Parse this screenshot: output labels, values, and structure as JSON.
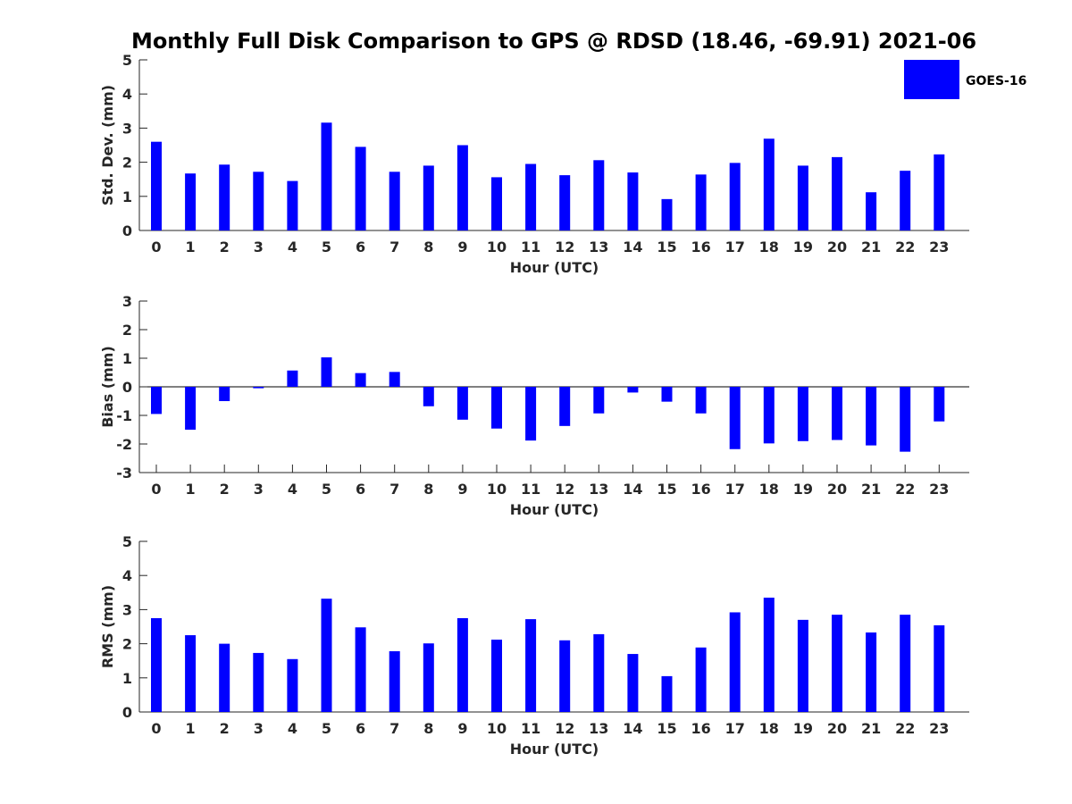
{
  "chart_data": {
    "type": "bar",
    "title": "Monthly Full Disk Comparison to GPS @ RDSD (18.46, -69.91) 2021-06",
    "legend": {
      "label": "GOES-16",
      "placement": "top-right",
      "color": "#0000ff"
    },
    "bar_color": "#0000ff",
    "grid": false,
    "categories": [
      "0",
      "1",
      "2",
      "3",
      "4",
      "5",
      "6",
      "7",
      "8",
      "9",
      "10",
      "11",
      "12",
      "13",
      "14",
      "15",
      "16",
      "17",
      "18",
      "19",
      "20",
      "21",
      "22",
      "23"
    ],
    "panels": [
      {
        "type": "bar",
        "xlabel": "Hour (UTC)",
        "ylabel": "Std. Dev. (mm)",
        "ylim": [
          0,
          5
        ],
        "yticks": [
          0,
          1,
          2,
          3,
          4,
          5
        ],
        "series": [
          {
            "name": "GOES-16",
            "values": [
              2.6,
              1.67,
              1.93,
              1.72,
              1.45,
              3.16,
              2.45,
              1.72,
              1.9,
              2.5,
              1.56,
              1.95,
              1.62,
              2.06,
              1.7,
              0.92,
              1.64,
              1.98,
              2.69,
              1.9,
              2.15,
              1.12,
              1.75,
              2.23
            ]
          }
        ]
      },
      {
        "type": "bar",
        "xlabel": "Hour (UTC)",
        "ylabel": "Bias (mm)",
        "ylim": [
          -3,
          3
        ],
        "yticks": [
          -3,
          -2,
          -1,
          0,
          1,
          2,
          3
        ],
        "series": [
          {
            "name": "GOES-16",
            "values": [
              -0.95,
              -1.5,
              -0.5,
              -0.05,
              0.57,
              1.03,
              0.48,
              0.52,
              -0.68,
              -1.15,
              -1.46,
              -1.88,
              -1.37,
              -0.93,
              -0.2,
              -0.52,
              -0.93,
              -2.18,
              -1.98,
              -1.9,
              -1.86,
              -2.05,
              -2.27,
              -1.21
            ]
          }
        ]
      },
      {
        "type": "bar",
        "xlabel": "Hour (UTC)",
        "ylabel": "RMS (mm)",
        "ylim": [
          0,
          5
        ],
        "yticks": [
          0,
          1,
          2,
          3,
          4,
          5
        ],
        "series": [
          {
            "name": "GOES-16",
            "values": [
              2.75,
              2.25,
              2.0,
              1.73,
              1.55,
              3.32,
              2.48,
              1.78,
              2.01,
              2.75,
              2.12,
              2.72,
              2.1,
              2.28,
              1.7,
              1.05,
              1.89,
              2.92,
              3.35,
              2.7,
              2.85,
              2.33,
              2.85,
              2.54
            ]
          }
        ]
      }
    ]
  }
}
